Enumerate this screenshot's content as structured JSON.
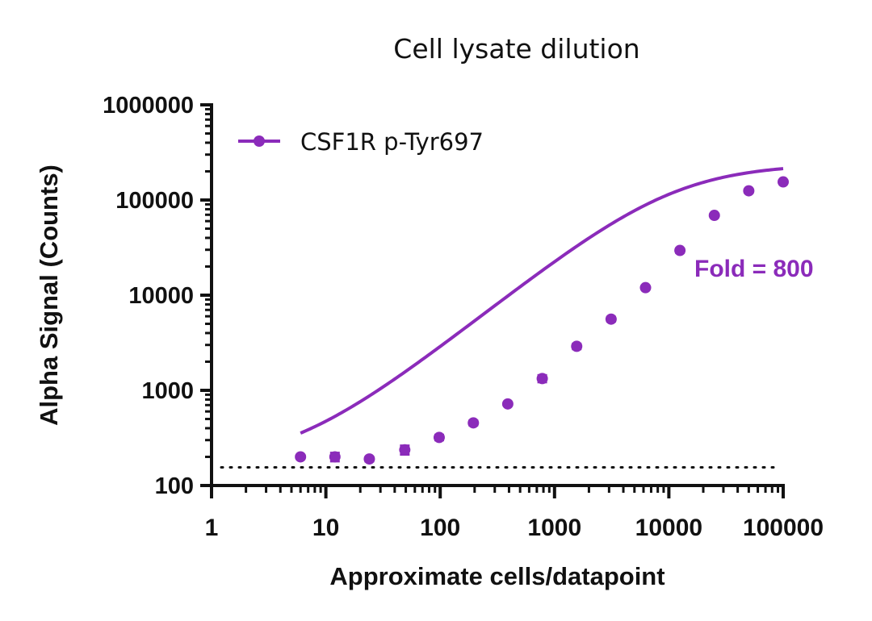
{
  "chart_data": {
    "type": "scatter",
    "title": "Cell lysate dilution",
    "xlabel": "Approximate cells/datapoint",
    "ylabel": "Alpha Signal (Counts)",
    "x_scale": "log",
    "y_scale": "log",
    "xlim": [
      1,
      100000
    ],
    "ylim": [
      100,
      1000000
    ],
    "x_ticks": [
      "1",
      "10",
      "100",
      "1000",
      "10000",
      "100000"
    ],
    "y_ticks": [
      "100",
      "1000",
      "10000",
      "100000",
      "1000000"
    ],
    "series": [
      {
        "name": "CSF1R p-Tyr697",
        "color": "#8B2BBA",
        "x": [
          6,
          12,
          24,
          49,
          98,
          195,
          390,
          781,
          1563,
          3125,
          6250,
          12500,
          25000,
          50000,
          100000
        ],
        "y": [
          200,
          200,
          190,
          237,
          320,
          455,
          720,
          1330,
          2900,
          5600,
          12000,
          29500,
          69000,
          125000,
          155000
        ],
        "y_err": [
          8,
          20,
          10,
          25,
          20,
          25,
          20,
          110,
          180,
          300,
          500,
          1500,
          2500,
          4000,
          4000
        ],
        "fit": {
          "bottom": 165,
          "top": 240000,
          "ec50": 11000,
          "hill": 0.95,
          "x_range": [
            6,
            100000
          ]
        }
      }
    ],
    "baseline": {
      "value": 155,
      "style": "dotted",
      "color": "#111111"
    },
    "annotation": {
      "text": "Fold = 800",
      "color": "#8B2BBA"
    },
    "legend": {
      "placement": "top-left"
    },
    "grid": false
  }
}
